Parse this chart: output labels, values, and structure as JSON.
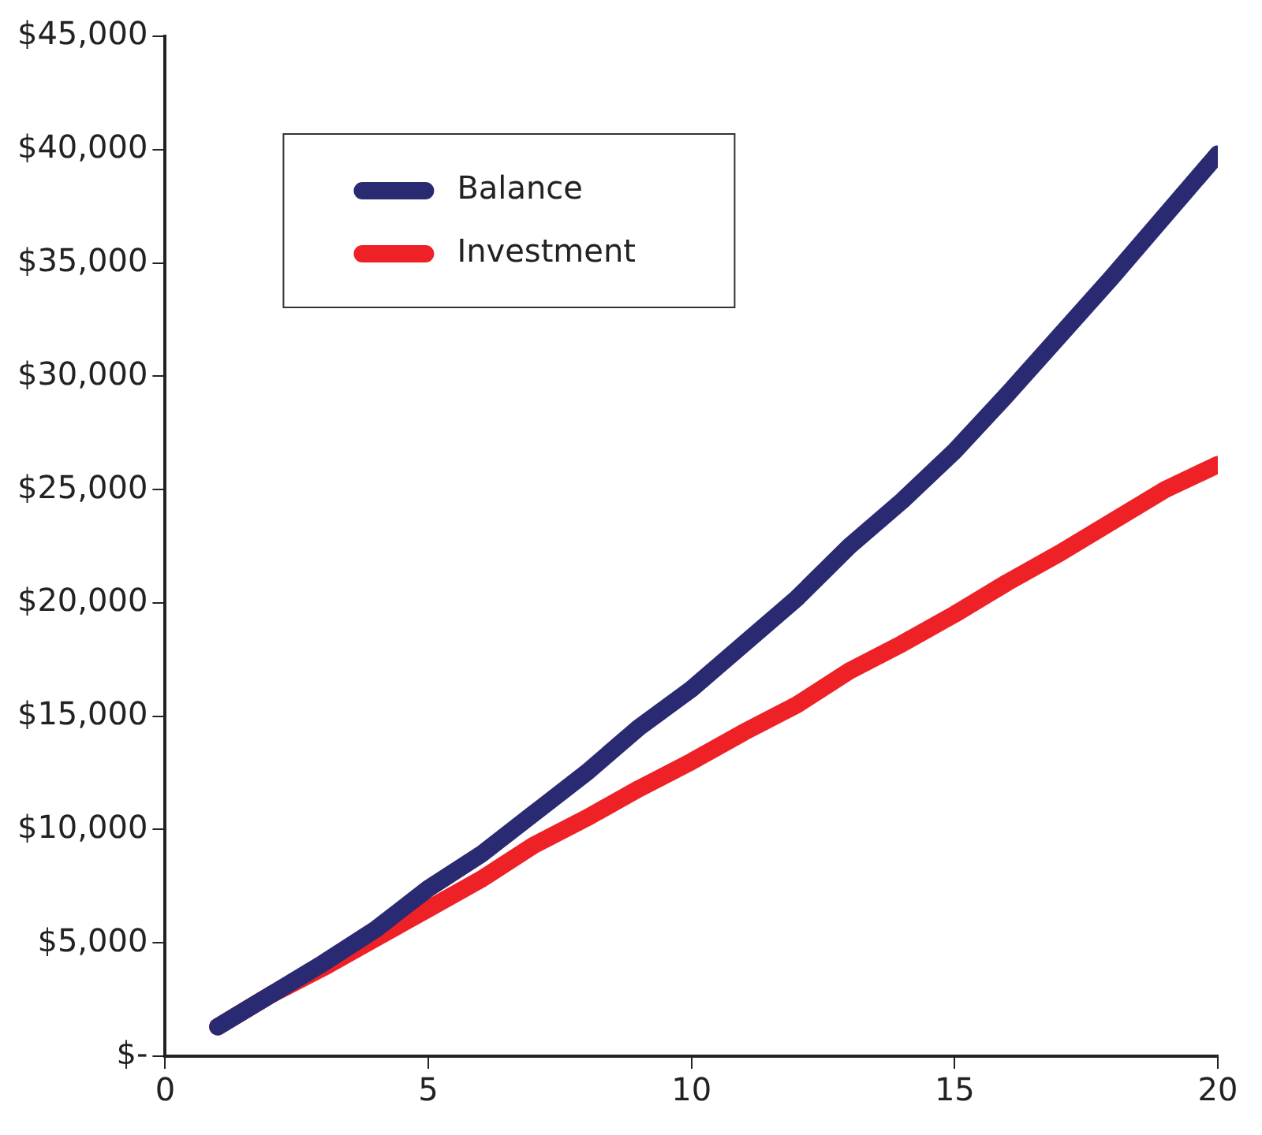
{
  "chart_data": {
    "type": "line",
    "x": [
      1,
      2,
      3,
      4,
      5,
      6,
      7,
      8,
      9,
      10,
      11,
      12,
      13,
      14,
      15,
      16,
      17,
      18,
      19,
      20
    ],
    "series": [
      {
        "name": "Balance",
        "color": "#2a2a72",
        "values": [
          1300,
          2700,
          4100,
          5600,
          7400,
          8900,
          10700,
          12500,
          14500,
          16200,
          18200,
          20200,
          22500,
          24500,
          26700,
          29200,
          31800,
          34400,
          37100,
          39800
        ]
      },
      {
        "name": "Investment",
        "color": "#ee2226",
        "values": [
          1300,
          2700,
          3900,
          5200,
          6500,
          7800,
          9300,
          10500,
          11800,
          13000,
          14300,
          15500,
          17000,
          18200,
          19500,
          20900,
          22200,
          23600,
          25000,
          26100
        ]
      }
    ],
    "xlim": [
      0,
      20
    ],
    "xticks": [
      0,
      5,
      10,
      15,
      20
    ],
    "ylim": [
      0,
      45000
    ],
    "yticks": [
      {
        "value": 0,
        "label": "$-"
      },
      {
        "value": 5000,
        "label": "$5,000"
      },
      {
        "value": 10000,
        "label": "$10,000"
      },
      {
        "value": 15000,
        "label": "$15,000"
      },
      {
        "value": 20000,
        "label": "$20,000"
      },
      {
        "value": 25000,
        "label": "$25,000"
      },
      {
        "value": 30000,
        "label": "$30,000"
      },
      {
        "value": 35000,
        "label": "$35,000"
      },
      {
        "value": 40000,
        "label": "$40,000"
      },
      {
        "value": 45000,
        "label": "$45,000"
      }
    ],
    "grid": false,
    "legend": "top left",
    "marker": "none",
    "line_style": "solid"
  }
}
